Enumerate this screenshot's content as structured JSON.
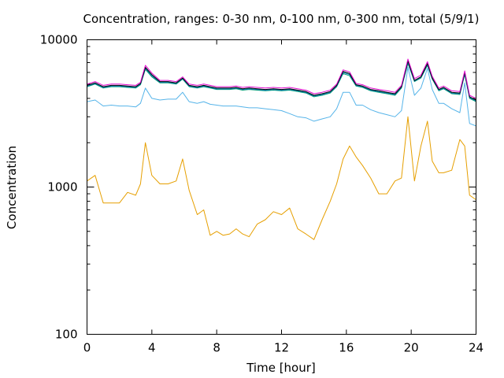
{
  "chart_data": {
    "type": "line",
    "title": "Concentration, ranges: 0-30 nm, 0-100 nm, 0-300 nm, total (5/9/1)",
    "xlabel": "Time [hour]",
    "ylabel": "Concentration",
    "xlim": [
      0,
      24
    ],
    "ylim": [
      100,
      10000
    ],
    "yscale": "log",
    "grid": false,
    "legend": "none",
    "x_ticks": [
      "0",
      "4",
      "8",
      "12",
      "16",
      "20",
      "24"
    ],
    "y_ticks": [
      "100",
      "1000",
      "10000"
    ],
    "x": [
      0,
      0.5,
      1,
      1.5,
      2,
      2.5,
      3,
      3.3,
      3.6,
      4,
      4.5,
      5,
      5.5,
      5.9,
      6.3,
      6.8,
      7.2,
      7.6,
      8,
      8.4,
      8.8,
      9.2,
      9.6,
      10,
      10.5,
      11,
      11.5,
      12,
      12.5,
      13,
      13.5,
      14,
      14.5,
      15,
      15.4,
      15.8,
      16.2,
      16.6,
      17,
      17.5,
      18,
      18.5,
      19,
      19.4,
      19.8,
      20.2,
      20.6,
      21,
      21.3,
      21.7,
      22,
      22.5,
      23,
      23.3,
      23.6,
      24
    ],
    "series": [
      {
        "color": "#e69f00",
        "values": [
          1100,
          1200,
          780,
          780,
          780,
          920,
          880,
          1050,
          2000,
          1200,
          1050,
          1050,
          1100,
          1550,
          950,
          650,
          700,
          470,
          500,
          470,
          480,
          520,
          480,
          460,
          560,
          600,
          680,
          650,
          720,
          520,
          480,
          440,
          600,
          800,
          1050,
          1550,
          1900,
          1600,
          1400,
          1150,
          900,
          900,
          1100,
          1150,
          3000,
          1100,
          1900,
          2800,
          1500,
          1250,
          1250,
          1300,
          2100,
          1900,
          880,
          820
        ]
      },
      {
        "color": "#56b4e9",
        "values": [
          3800,
          3900,
          3550,
          3600,
          3550,
          3550,
          3500,
          3700,
          4700,
          4000,
          3900,
          3950,
          3950,
          4400,
          3800,
          3700,
          3800,
          3650,
          3600,
          3550,
          3550,
          3550,
          3500,
          3450,
          3450,
          3400,
          3350,
          3300,
          3150,
          3000,
          2950,
          2800,
          2900,
          3000,
          3400,
          4400,
          4400,
          3600,
          3600,
          3350,
          3200,
          3100,
          3000,
          3300,
          6500,
          4200,
          4700,
          6400,
          4600,
          3700,
          3700,
          3400,
          3200,
          5100,
          2700,
          2600
        ]
      },
      {
        "color": "#009e73",
        "values": [
          4800,
          5000,
          4700,
          4800,
          4800,
          4750,
          4700,
          4950,
          6300,
          5600,
          5100,
          5100,
          5000,
          5400,
          4800,
          4700,
          4800,
          4700,
          4600,
          4600,
          4600,
          4650,
          4550,
          4600,
          4550,
          4500,
          4550,
          4500,
          4550,
          4450,
          4350,
          4100,
          4200,
          4350,
          4800,
          5900,
          5700,
          4850,
          4750,
          4500,
          4400,
          4300,
          4200,
          4700,
          6900,
          5200,
          5500,
          6700,
          5400,
          4500,
          4650,
          4300,
          4250,
          5800,
          4000,
          3800
        ]
      },
      {
        "color": "#0072b2",
        "values": [
          4850,
          5050,
          4750,
          4850,
          4850,
          4800,
          4750,
          5000,
          6400,
          5700,
          5150,
          5150,
          5050,
          5450,
          4850,
          4750,
          4850,
          4750,
          4650,
          4650,
          4650,
          4700,
          4600,
          4650,
          4600,
          4550,
          4600,
          4550,
          4600,
          4500,
          4400,
          4150,
          4250,
          4400,
          4850,
          6000,
          5800,
          4900,
          4800,
          4550,
          4450,
          4350,
          4250,
          4750,
          7050,
          5250,
          5550,
          6800,
          5450,
          4550,
          4700,
          4350,
          4300,
          5900,
          4050,
          3850
        ]
      },
      {
        "color": "#000000",
        "values": [
          4900,
          5100,
          4800,
          4900,
          4900,
          4850,
          4800,
          5050,
          6500,
          5800,
          5200,
          5200,
          5100,
          5500,
          4900,
          4800,
          4900,
          4800,
          4700,
          4700,
          4700,
          4750,
          4650,
          4700,
          4650,
          4600,
          4650,
          4600,
          4650,
          4550,
          4450,
          4200,
          4300,
          4450,
          4900,
          6100,
          5900,
          4950,
          4850,
          4600,
          4500,
          4400,
          4300,
          4800,
          7200,
          5300,
          5600,
          6900,
          5500,
          4600,
          4750,
          4400,
          4350,
          6000,
          4100,
          3900
        ]
      },
      {
        "color": "#e10bd1",
        "values": [
          5000,
          5200,
          4900,
          5000,
          5000,
          4950,
          4900,
          5150,
          6700,
          5950,
          5300,
          5300,
          5200,
          5600,
          5000,
          4900,
          5000,
          4900,
          4800,
          4800,
          4800,
          4850,
          4750,
          4800,
          4750,
          4700,
          4750,
          4700,
          4750,
          4650,
          4550,
          4300,
          4400,
          4550,
          5000,
          6250,
          6050,
          5050,
          4950,
          4700,
          4600,
          4500,
          4400,
          4900,
          7400,
          5450,
          5750,
          7100,
          5650,
          4700,
          4850,
          4500,
          4450,
          6150,
          4200,
          4000
        ]
      }
    ]
  }
}
